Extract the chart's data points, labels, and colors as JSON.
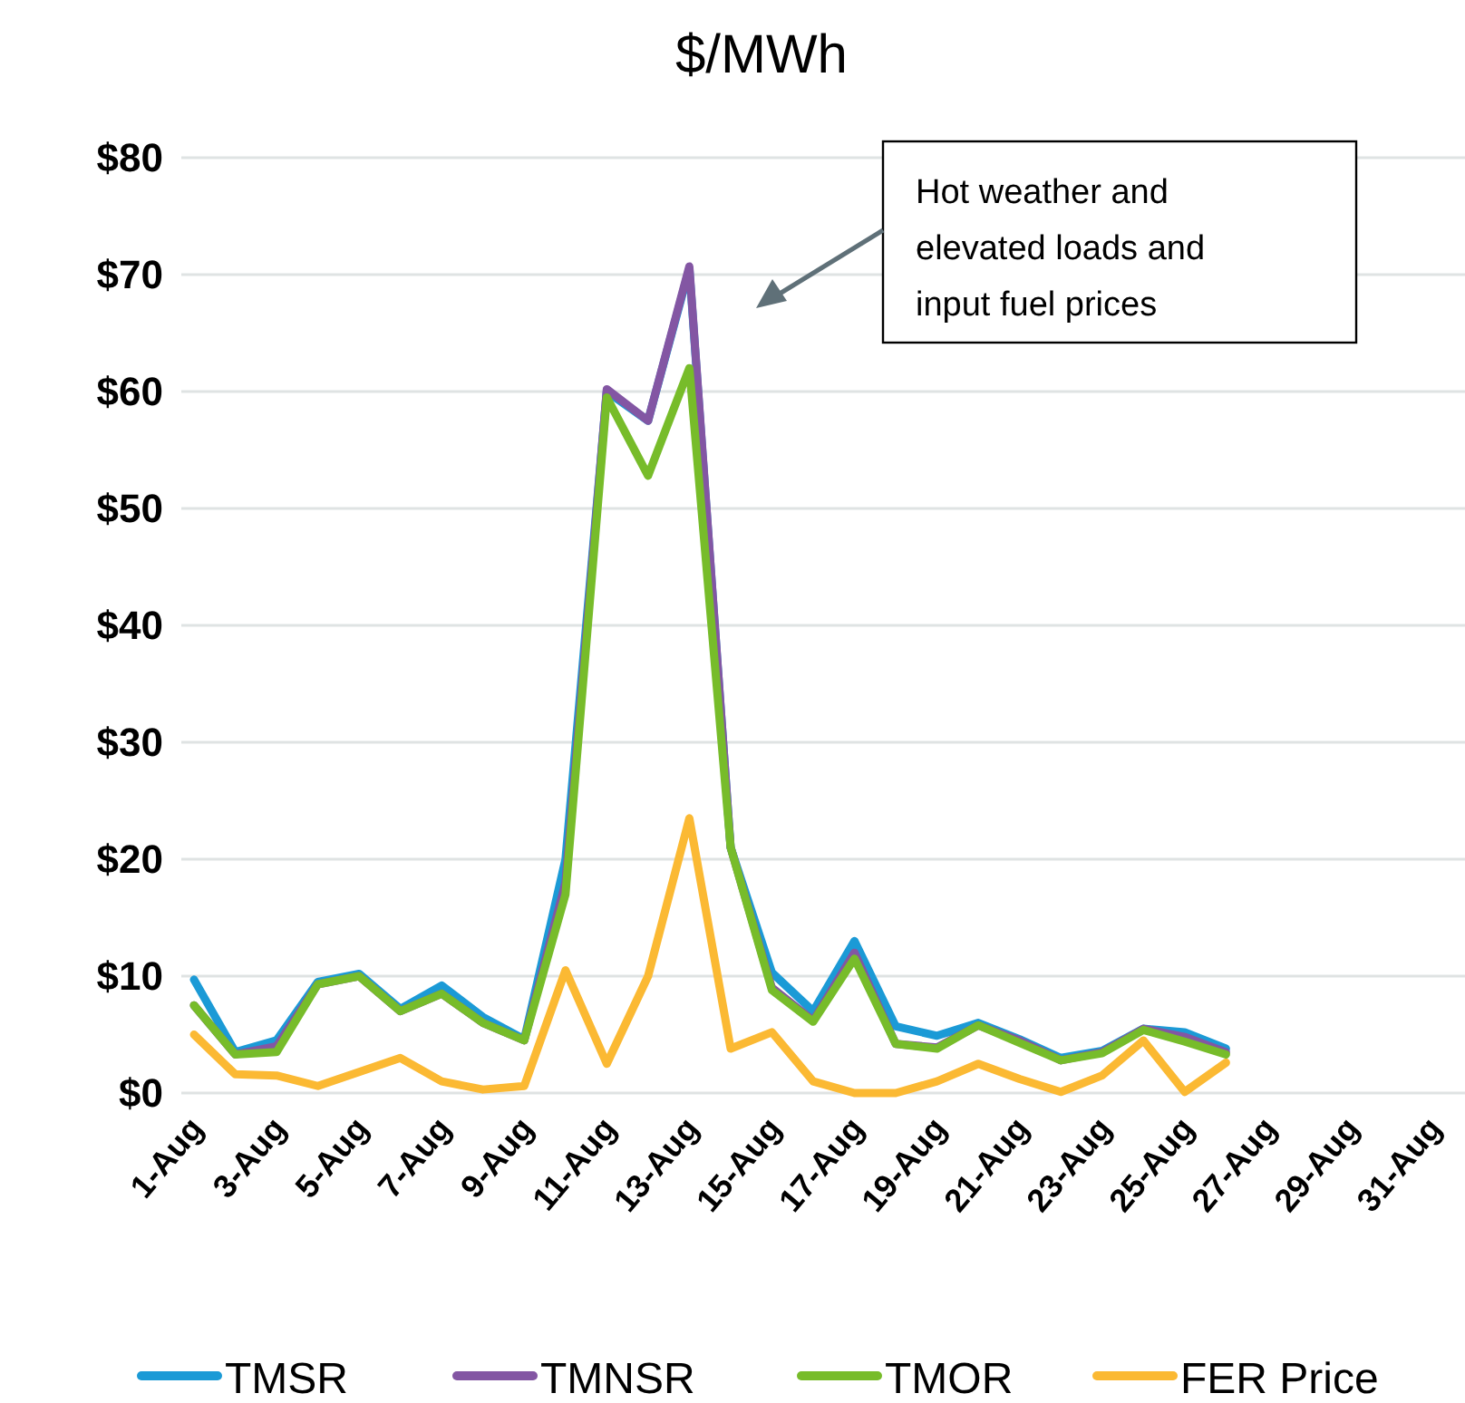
{
  "chart_data": {
    "type": "line",
    "title": "$/MWh",
    "categories": [
      "1-Aug",
      null,
      "3-Aug",
      null,
      "5-Aug",
      null,
      "7-Aug",
      null,
      "9-Aug",
      null,
      "11-Aug",
      null,
      "13-Aug",
      null,
      "15-Aug",
      null,
      "17-Aug",
      null,
      "19-Aug",
      null,
      "21-Aug",
      null,
      "23-Aug",
      null,
      "25-Aug",
      null,
      "27-Aug",
      null,
      "29-Aug",
      null,
      "31-Aug"
    ],
    "series": [
      {
        "name": "TMSR",
        "color": "#1b9ad6",
        "values": [
          9.7,
          3.5,
          4.5,
          9.5,
          10.2,
          7.2,
          9.2,
          6.5,
          4.6,
          20,
          60,
          57.5,
          70.5,
          21,
          10.3,
          7,
          13,
          5.7,
          4.9,
          6,
          4.6,
          3,
          3.6,
          5.5,
          5.2,
          3.8,
          null,
          null,
          null,
          null,
          null
        ]
      },
      {
        "name": "TMNSR",
        "color": "#8356a3",
        "values": [
          7.5,
          3.3,
          4,
          9.3,
          10,
          7,
          8.5,
          6,
          4.5,
          18,
          60.2,
          57.5,
          70.7,
          21,
          9,
          6.2,
          12,
          4.2,
          3.9,
          5.8,
          4.5,
          2.8,
          3.5,
          5.5,
          4.8,
          3.5,
          null,
          null,
          null,
          null,
          null
        ]
      },
      {
        "name": "TMOR",
        "color": "#77bc2a",
        "values": [
          7.5,
          3.3,
          3.5,
          9.3,
          10,
          7,
          8.5,
          6,
          4.5,
          17,
          59.5,
          52.8,
          62,
          21,
          8.8,
          6.1,
          11.5,
          4.2,
          3.8,
          5.8,
          4.3,
          2.8,
          3.4,
          5.4,
          4.4,
          3.3,
          null,
          null,
          null,
          null,
          null
        ]
      },
      {
        "name": "FER Price",
        "color": "#fbb933",
        "values": [
          5,
          1.6,
          1.5,
          0.6,
          1.8,
          3,
          1,
          0.3,
          0.6,
          10.5,
          2.5,
          10,
          23.5,
          3.8,
          5.2,
          1,
          0,
          0,
          1,
          2.5,
          1.2,
          0.1,
          1.5,
          4.5,
          0.1,
          2.6,
          null,
          null,
          null,
          null,
          null
        ]
      }
    ],
    "ylim": [
      0,
      80
    ],
    "yticks": [
      {
        "value": 0,
        "label": "$0"
      },
      {
        "value": 10,
        "label": "$10"
      },
      {
        "value": 20,
        "label": "$20"
      },
      {
        "value": 30,
        "label": "$30"
      },
      {
        "value": 40,
        "label": "$40"
      },
      {
        "value": 50,
        "label": "$50"
      },
      {
        "value": 60,
        "label": "$60"
      },
      {
        "value": 70,
        "label": "$70"
      },
      {
        "value": 80,
        "label": "$80"
      }
    ],
    "grid": "y",
    "legend": "bottom",
    "marker": "none",
    "line_style": "solid",
    "annotations": [
      "Hot weather and elevated loads and input fuel prices"
    ]
  }
}
